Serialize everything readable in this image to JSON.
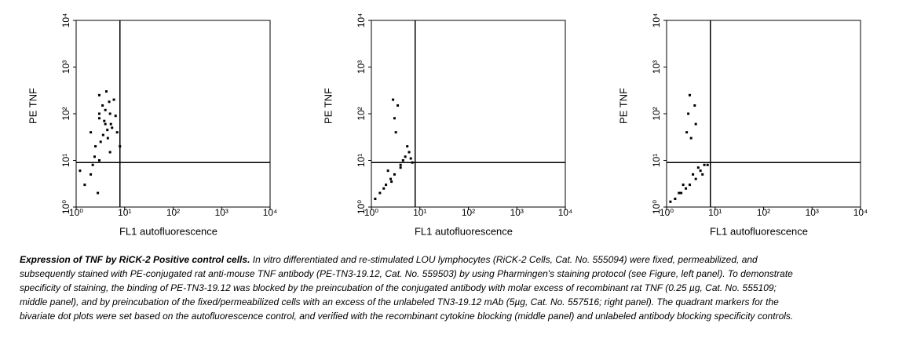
{
  "chart_data": [
    {
      "type": "scatter",
      "x_label": "FL1 autofluorescence",
      "y_label": "PE TNF",
      "log_x": true,
      "log_y": true,
      "color": "#000000",
      "xlim": [
        1,
        10000
      ],
      "ylim": [
        1,
        10000
      ],
      "xticks": [
        {
          "value": 1,
          "label": "10⁰"
        },
        {
          "value": 10,
          "label": "10¹"
        },
        {
          "value": 100,
          "label": "10²"
        },
        {
          "value": 1000,
          "label": "10³"
        },
        {
          "value": 10000,
          "label": "10⁴"
        }
      ],
      "yticks": [
        {
          "value": 1,
          "label": "10⁰"
        },
        {
          "value": 10,
          "label": "10¹"
        },
        {
          "value": 100,
          "label": "10²"
        },
        {
          "value": 1000,
          "label": "10³"
        },
        {
          "value": 10000,
          "label": "10⁴"
        }
      ],
      "quadrant": {
        "x": 8,
        "y": 9
      },
      "x": [
        2,
        3,
        4,
        5,
        3.5,
        2.5,
        4.5,
        6,
        3,
        5.5,
        2,
        4,
        3,
        7,
        1.5,
        2.2,
        3.8,
        5,
        4.2,
        3.2,
        6.5,
        2.8,
        4.8,
        1.2,
        8,
        3.6,
        5.2,
        2.4,
        4.4,
        3
      ],
      "y": [
        40,
        80,
        60,
        100,
        150,
        20,
        30,
        200,
        10,
        50,
        5,
        120,
        250,
        40,
        3,
        8,
        70,
        15,
        300,
        25,
        90,
        2,
        180,
        6,
        20,
        35,
        60,
        12,
        45,
        100
      ]
    },
    {
      "type": "scatter",
      "x_label": "FL1 autofluorescence",
      "y_label": "PE TNF",
      "log_x": true,
      "log_y": true,
      "color": "#000000",
      "xlim": [
        1,
        10000
      ],
      "ylim": [
        1,
        10000
      ],
      "xticks": [
        {
          "value": 1,
          "label": "10⁰"
        },
        {
          "value": 10,
          "label": "10¹"
        },
        {
          "value": 100,
          "label": "10²"
        },
        {
          "value": 1000,
          "label": "10³"
        },
        {
          "value": 10000,
          "label": "10⁴"
        }
      ],
      "yticks": [
        {
          "value": 1,
          "label": "10⁰"
        },
        {
          "value": 10,
          "label": "10¹"
        },
        {
          "value": 100,
          "label": "10²"
        },
        {
          "value": 1000,
          "label": "10³"
        },
        {
          "value": 10000,
          "label": "10⁴"
        }
      ],
      "quadrant": {
        "x": 8,
        "y": 9
      },
      "x": [
        2,
        3,
        4,
        5,
        1.5,
        2.5,
        6,
        3.5,
        1.2,
        4.5,
        7,
        2.2,
        3,
        5.5,
        1.8,
        2.8,
        4,
        3.2,
        6.5,
        2.6
      ],
      "y": [
        3,
        5,
        8,
        12,
        2,
        4,
        15,
        150,
        1.5,
        10,
        9,
        6,
        80,
        20,
        2.5,
        200,
        7,
        40,
        11,
        3.5
      ]
    },
    {
      "type": "scatter",
      "x_label": "FL1 autofluorescence",
      "y_label": "PE TNF",
      "log_x": true,
      "log_y": true,
      "color": "#000000",
      "xlim": [
        1,
        10000
      ],
      "ylim": [
        1,
        10000
      ],
      "xticks": [
        {
          "value": 1,
          "label": "10⁰"
        },
        {
          "value": 10,
          "label": "10¹"
        },
        {
          "value": 100,
          "label": "10²"
        },
        {
          "value": 1000,
          "label": "10³"
        },
        {
          "value": 10000,
          "label": "10⁴"
        }
      ],
      "yticks": [
        {
          "value": 1,
          "label": "10⁰"
        },
        {
          "value": 10,
          "label": "10¹"
        },
        {
          "value": 100,
          "label": "10²"
        },
        {
          "value": 1000,
          "label": "10³"
        },
        {
          "value": 10000,
          "label": "10⁴"
        }
      ],
      "quadrant": {
        "x": 8,
        "y": 9
      },
      "x": [
        2,
        3,
        4,
        5,
        1.5,
        2.5,
        6,
        3.5,
        1.2,
        4.5,
        7,
        2.2,
        3,
        5.5,
        1.8,
        2.8,
        4,
        3.2,
        2.6,
        3.8
      ],
      "y": [
        2,
        3,
        4,
        6,
        1.5,
        2.5,
        8,
        5,
        1.3,
        7,
        8,
        3,
        250,
        5,
        2,
        100,
        60,
        30,
        40,
        150
      ]
    }
  ],
  "caption": {
    "bold": "Expression of TNF by RiCK-2 Positive control cells.",
    "text": "In vitro differentiated and re-stimulated LOU lymphocytes (RiCK-2 Cells, Cat. No. 555094) were fixed, permeabilized, and subsequently stained with PE-conjugated rat anti-mouse TNF antibody (PE-TN3-19.12, Cat. No. 559503) by using Pharmingen's staining protocol (see Figure, left panel). To demonstrate specificity of staining, the binding of PE-TN3-19.12 was blocked by the preincubation of the conjugated antibody with molar excess of recombinant rat TNF (0.25 µg, Cat. No. 555109; middle panel), and by preincubation of the fixed/permeabilized cells with an excess of the unlabeled TN3-19.12 mAb (5µg, Cat. No. 557516; right panel). The quadrant markers for the bivariate dot plots were set based on the autofluorescence control, and verified with the recombinant cytokine blocking (middle panel) and unlabeled antibody blocking specificity controls."
  }
}
